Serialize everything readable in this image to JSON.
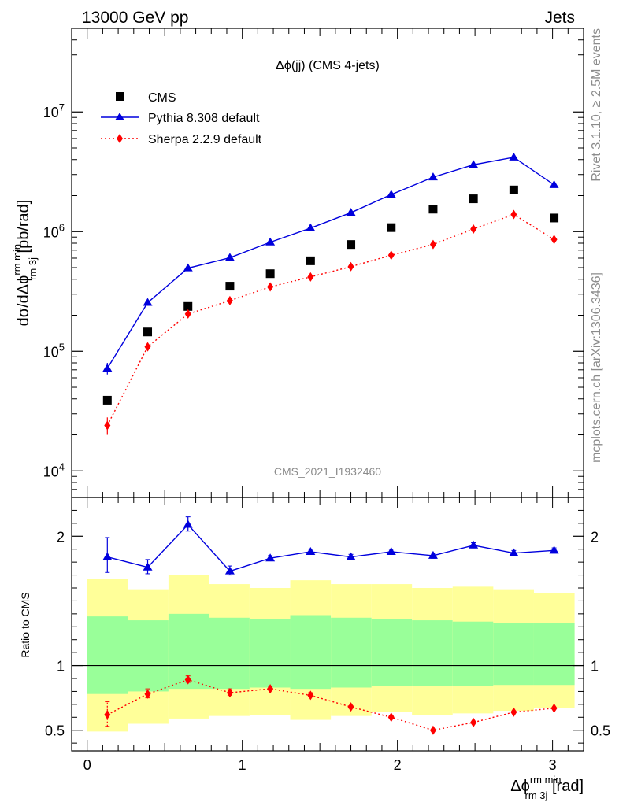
{
  "header": {
    "left": "13000 GeV pp",
    "right": "Jets"
  },
  "side": {
    "rivet": "Rivet 3.1.10, ≥ 2.5M events",
    "mcplots": "mcplots.cern.ch [arXiv:1306.3436]"
  },
  "chart_data": [
    {
      "type": "scatter",
      "title": "Δϕ(jj) (CMS 4-jets)",
      "watermark": "CMS_2021_I1932460",
      "ylabel": "dσ/dΔϕ rm 3j rm min [pb/rad]",
      "yscale": "log",
      "ylim": [
        6000,
        50000000
      ],
      "xlim": [
        -0.1,
        3.2
      ],
      "ytick_labels": [
        "10^4",
        "10^5",
        "10^6",
        "10^7"
      ],
      "x": [
        0.13,
        0.39,
        0.65,
        0.92,
        1.18,
        1.44,
        1.7,
        1.96,
        2.23,
        2.49,
        2.75,
        3.01
      ],
      "legend_position": "top-left",
      "series": [
        {
          "name": "CMS",
          "marker": "square",
          "color": "#000000",
          "values": [
            39000,
            145000,
            237000,
            350000,
            445000,
            570000,
            780000,
            1080000,
            1540000,
            1880000,
            2230000,
            1300000
          ]
        },
        {
          "name": "Pythia 8.308 default",
          "marker": "triangle",
          "line": "solid",
          "color": "#0000dd",
          "values": [
            72000,
            255000,
            495000,
            605000,
            815000,
            1070000,
            1440000,
            2040000,
            2850000,
            3620000,
            4180000,
            2460000
          ],
          "err_low": [
            64000,
            245000,
            480000,
            590000,
            800000,
            1050000,
            1420000,
            2010000,
            2820000,
            3580000,
            4130000,
            2420000
          ],
          "err_high": [
            80000,
            265000,
            510000,
            620000,
            830000,
            1090000,
            1460000,
            2070000,
            2880000,
            3660000,
            4230000,
            2500000
          ]
        },
        {
          "name": "Sherpa 2.2.9 default",
          "marker": "diamond",
          "line": "dotted",
          "color": "#ff0000",
          "values": [
            24000,
            109000,
            205000,
            265000,
            345000,
            418000,
            510000,
            635000,
            780000,
            1050000,
            1390000,
            860000
          ],
          "err_low": [
            20000,
            101000,
            194000,
            253000,
            333000,
            405000,
            496000,
            620000,
            765000,
            1030000,
            1360000,
            840000
          ],
          "err_high": [
            28000,
            117000,
            216000,
            277000,
            357000,
            431000,
            524000,
            650000,
            795000,
            1070000,
            1420000,
            880000
          ]
        }
      ]
    },
    {
      "type": "scatter",
      "ylabel": "Ratio to CMS",
      "xlabel": "Δϕ rm 3j rm min [rad]",
      "xlim": [
        -0.1,
        3.2
      ],
      "ylim": [
        0.34,
        2.3
      ],
      "xtick_labels": [
        "0",
        "1",
        "2",
        "3"
      ],
      "ytick_labels": [
        "0.5",
        "1",
        "2"
      ],
      "reference_line": 1,
      "bin_edges": [
        0.0,
        0.262,
        0.524,
        0.785,
        1.047,
        1.309,
        1.571,
        1.833,
        2.094,
        2.356,
        2.618,
        2.88,
        3.142
      ],
      "band_outer_low": [
        0.49,
        0.55,
        0.59,
        0.61,
        0.62,
        0.58,
        0.61,
        0.64,
        0.62,
        0.63,
        0.65,
        0.67
      ],
      "band_outer_high": [
        1.67,
        1.59,
        1.7,
        1.63,
        1.6,
        1.66,
        1.63,
        1.63,
        1.6,
        1.61,
        1.59,
        1.56
      ],
      "band_inner_low": [
        0.78,
        0.8,
        0.82,
        0.82,
        0.83,
        0.82,
        0.83,
        0.84,
        0.84,
        0.84,
        0.85,
        0.85
      ],
      "band_inner_high": [
        1.38,
        1.35,
        1.4,
        1.37,
        1.36,
        1.39,
        1.37,
        1.36,
        1.35,
        1.34,
        1.33,
        1.33
      ],
      "x": [
        0.13,
        0.39,
        0.65,
        0.92,
        1.18,
        1.44,
        1.7,
        1.96,
        2.23,
        2.49,
        2.75,
        3.01
      ],
      "series": [
        {
          "name": "Pythia 8.308 default",
          "color": "#0000dd",
          "values": [
            1.84,
            1.76,
            2.09,
            1.73,
            1.83,
            1.88,
            1.84,
            1.88,
            1.85,
            1.93,
            1.87,
            1.89
          ],
          "err_low": [
            1.72,
            1.71,
            2.04,
            1.7,
            1.81,
            1.86,
            1.82,
            1.86,
            1.83,
            1.91,
            1.85,
            1.87
          ],
          "err_high": [
            1.99,
            1.82,
            2.15,
            1.77,
            1.85,
            1.9,
            1.86,
            1.9,
            1.87,
            1.95,
            1.89,
            1.91
          ]
        },
        {
          "name": "Sherpa 2.2.9 default",
          "color": "#ff0000",
          "values": [
            0.62,
            0.78,
            0.89,
            0.79,
            0.82,
            0.77,
            0.68,
            0.6,
            0.5,
            0.56,
            0.64,
            0.67
          ],
          "err_low": [
            0.53,
            0.75,
            0.87,
            0.77,
            0.81,
            0.76,
            0.67,
            0.59,
            0.495,
            0.555,
            0.635,
            0.665
          ],
          "err_high": [
            0.72,
            0.82,
            0.92,
            0.82,
            0.84,
            0.79,
            0.69,
            0.61,
            0.505,
            0.565,
            0.645,
            0.675
          ]
        }
      ]
    }
  ]
}
